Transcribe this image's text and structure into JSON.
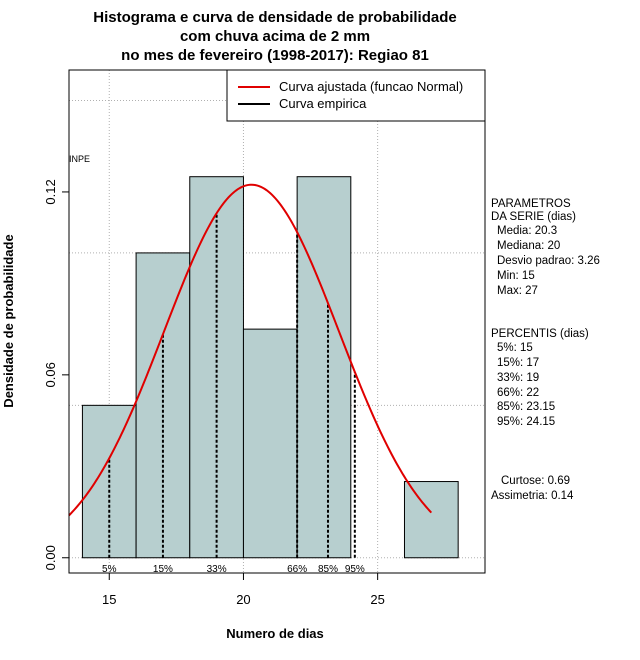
{
  "chart_data": {
    "type": "bar",
    "title_lines": [
      "Histograma e curva de densidade de probabilidade",
      "com chuva acima de 2 mm",
      "no mes de fevereiro (1998-2017): Regiao 81"
    ],
    "xlabel": "Numero de dias",
    "ylabel": "Densidade de probabilidade",
    "xlim": [
      13.5,
      29
    ],
    "ylim": [
      -0.005,
      0.16
    ],
    "x_ticks": [
      15,
      20,
      25
    ],
    "x_tick_labels": [
      "15",
      "20",
      "25"
    ],
    "y_ticks": [
      0.0,
      0.06,
      0.12
    ],
    "y_tick_labels": [
      "0.00",
      "0.06",
      "0.12"
    ],
    "grid": true,
    "grid_x": [
      15,
      20,
      25
    ],
    "grid_y": [
      0.0,
      0.05,
      0.1,
      0.15
    ],
    "bars": [
      {
        "x0": 14,
        "x1": 16,
        "density": 0.05
      },
      {
        "x0": 16,
        "x1": 18,
        "density": 0.1
      },
      {
        "x0": 18,
        "x1": 20,
        "density": 0.125
      },
      {
        "x0": 20,
        "x1": 22,
        "density": 0.075
      },
      {
        "x0": 22,
        "x1": 24,
        "density": 0.125
      },
      {
        "x0": 24,
        "x1": 26,
        "density": 0.0
      },
      {
        "x0": 26,
        "x1": 28,
        "density": 0.025
      }
    ],
    "bar_color": "#b7cfcf",
    "normal_curve": {
      "mean": 20.3,
      "sd": 3.26,
      "x_from": 13.5,
      "x_to": 27,
      "color": "#e00000"
    },
    "percentile_lines": [
      {
        "label": "5%",
        "x": 15
      },
      {
        "label": "15%",
        "x": 17
      },
      {
        "label": "33%",
        "x": 19
      },
      {
        "label": "66%",
        "x": 22
      },
      {
        "label": "85%",
        "x": 23.15
      },
      {
        "label": "95%",
        "x": 24.15
      }
    ],
    "legend": {
      "position": "top-right",
      "entries": [
        {
          "label": "Curva ajustada (funcao Normal)",
          "color": "#e00000"
        },
        {
          "label": "Curva empirica",
          "color": "#000000"
        }
      ]
    },
    "annotation": "INPE"
  },
  "side_panel": {
    "parametros": [
      "PARAMETROS",
      "DA SERIE (dias)",
      "Media: 20.3",
      "Mediana: 20",
      "Desvio padrao: 3.26",
      "Min: 15",
      "Max: 27"
    ],
    "percentis": [
      "PERCENTIS (dias)",
      "5%: 15",
      "15%: 17",
      "33%: 19",
      "66%: 22",
      "85%: 23.15",
      "95%: 24.15"
    ],
    "stats": [
      "Curtose: 0.69",
      "Assimetria: 0.14"
    ]
  }
}
